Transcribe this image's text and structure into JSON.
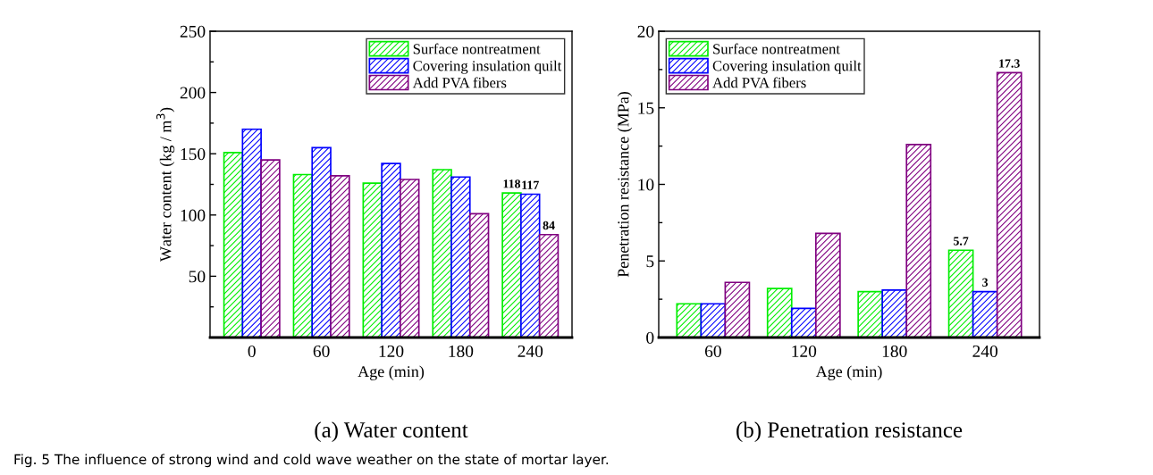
{
  "chart_data": [
    {
      "type": "bar",
      "title": "(a) Water content",
      "xlabel": "Age (min)",
      "ylabel": "Water content (kg / m$^{3}$)",
      "categories": [
        "0",
        "60",
        "120",
        "180",
        "240"
      ],
      "series": [
        {
          "name": "Surface nontreatment",
          "color": "#00ee00",
          "values": [
            151,
            133,
            126,
            137,
            118
          ],
          "value_labels": [
            null,
            null,
            null,
            null,
            "118"
          ]
        },
        {
          "name": "Covering insulation quilt",
          "color": "#0000ff",
          "values": [
            170,
            155,
            142,
            131,
            117
          ],
          "value_labels": [
            null,
            null,
            null,
            null,
            "117"
          ]
        },
        {
          "name": "Add PVA fibers",
          "color": "#800080",
          "values": [
            145,
            132,
            129,
            101,
            84
          ],
          "value_labels": [
            null,
            null,
            null,
            null,
            "84"
          ]
        }
      ],
      "ylim": [
        0,
        250
      ],
      "yticks": [
        {
          "value": 0,
          "label": null
        },
        50,
        100,
        150,
        200,
        250
      ],
      "legend": "top right",
      "grid": false,
      "annotations": [
        "Fig. 5 The influence of strong wind and cold wave weather on the state of mortar layer."
      ]
    },
    {
      "type": "bar",
      "title": "(b) Penetration resistance",
      "xlabel": "Age (min)",
      "ylabel": "Penetration resistance (MPa)",
      "categories": [
        "60",
        "120",
        "180",
        "240"
      ],
      "series": [
        {
          "name": "Surface nontreatment",
          "color": "#00ee00",
          "values": [
            2.2,
            3.2,
            3.0,
            5.7
          ],
          "value_labels": [
            null,
            null,
            null,
            "5.7"
          ]
        },
        {
          "name": "Covering insulation quilt",
          "color": "#0000ff",
          "values": [
            2.2,
            1.9,
            3.1,
            3
          ],
          "value_labels": [
            null,
            null,
            null,
            "3"
          ]
        },
        {
          "name": "Add PVA fibers",
          "color": "#800080",
          "values": [
            3.6,
            6.8,
            12.6,
            17.3
          ],
          "value_labels": [
            null,
            null,
            null,
            "17.3"
          ]
        }
      ],
      "ylim": [
        0,
        20
      ],
      "yticks": [
        0,
        5,
        10,
        15,
        20
      ],
      "legend": "top left",
      "grid": false
    }
  ]
}
